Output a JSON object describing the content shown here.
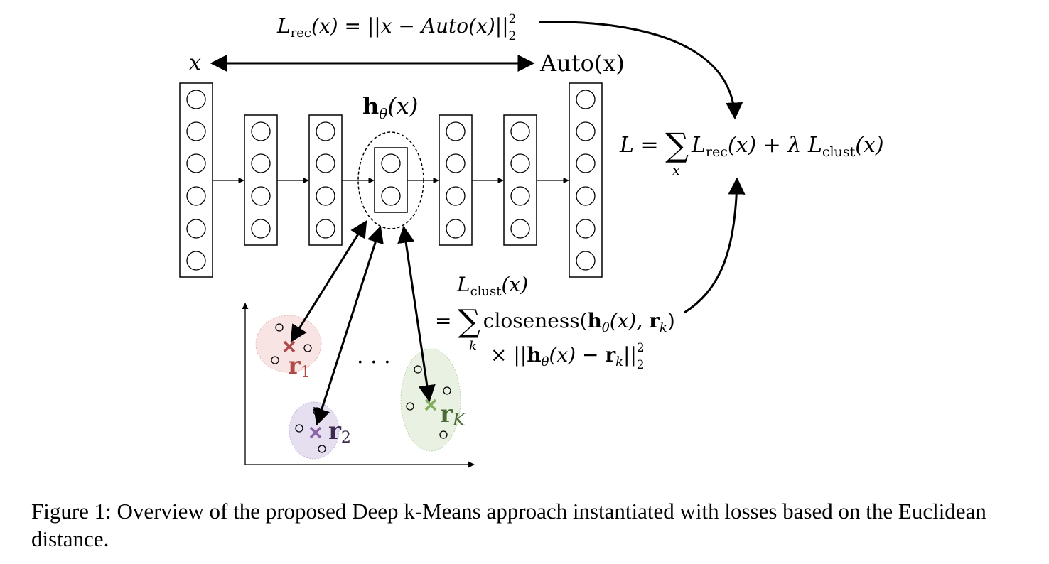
{
  "formulas": {
    "rec_loss": {
      "L": "L",
      "sub": "rec",
      "body": "(x) = ||x − Auto(x)||",
      "sup": "2",
      "sub2": "2"
    },
    "input_label": "x",
    "output_label": "Auto(x)",
    "embedding_label": {
      "h": "h",
      "sub": "θ",
      "arg": "(x)"
    },
    "total_loss": {
      "lhs": "L = ",
      "sum": "∑",
      "sum_index": "x",
      "L1": "L",
      "sub1": "rec",
      "mid": "(x) + λ ",
      "L2": "L",
      "sub2": "clust",
      "end": "(x)"
    },
    "clust_loss": {
      "head": {
        "L": "L",
        "sub": "clust",
        "arg": "(x)"
      },
      "line1": {
        "eq": "= ",
        "sum": "∑",
        "sum_index": "k",
        "word": "closeness(",
        "h": "h",
        "hsub": "θ",
        "args": "(x), ",
        "r": "r",
        "rsub": "k",
        "close": ")"
      },
      "line2": {
        "times": "× ||",
        "h": "h",
        "hsub": "θ",
        "mid": "(x) − ",
        "r": "r",
        "rsub": "k",
        "close": "||",
        "sup": "2",
        "sub": "2"
      }
    }
  },
  "clusters": [
    {
      "label": "r",
      "index": "1",
      "color": "#b04a48",
      "fill": "#f7e4e3"
    },
    {
      "label": "r",
      "index": "2",
      "color": "#3d2b4f",
      "marker": "#8e63a8",
      "fill": "#e6dff0"
    },
    {
      "label": "r",
      "index": "K",
      "color": "#4a6b33",
      "marker": "#7fad5c",
      "fill": "#e8f1e2"
    }
  ],
  "ellipsis": "· · ·",
  "caption": "Figure 1: Overview of the proposed Deep k-Means approach instantiated with losses based on the Euclidean distance."
}
